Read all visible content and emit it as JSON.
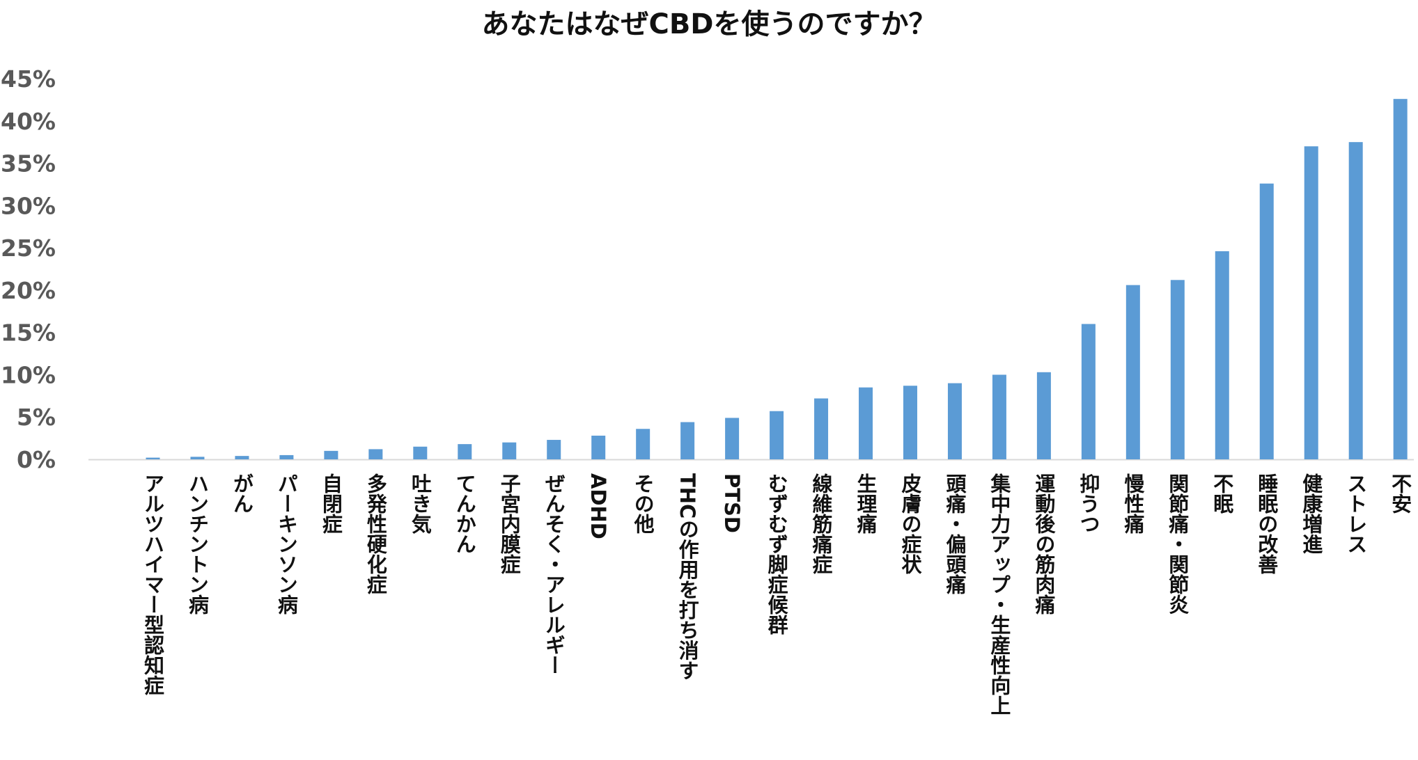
{
  "chart_data": {
    "type": "bar",
    "title": "あなたはなぜCBDを使うのですか？",
    "xlabel": "",
    "ylabel": "",
    "ylim": [
      0,
      45
    ],
    "y_ticks": [
      "0%",
      "5%",
      "10%",
      "15%",
      "20%",
      "25%",
      "30%",
      "35%",
      "40%",
      "45%"
    ],
    "grid": false,
    "categories": [
      "アルツハイマー型認知症",
      "ハンチントン病",
      "がん",
      "パーキンソン病",
      "自閉症",
      "多発性硬化症",
      "吐き気",
      "てんかん",
      "子宮内膜症",
      "ぜんそく・アレルギー",
      "ADHD",
      "その他",
      "THCの作用を打ち消す",
      "PTSD",
      "むずむず脚症候群",
      "線維筋痛症",
      "生理痛",
      "皮膚の症状",
      "頭痛・偏頭痛",
      "集中力アップ・生産性向上",
      "運動後の筋肉痛",
      "抑うつ",
      "慢性痛",
      "関節痛・関節炎",
      "不眠",
      "睡眠の改善",
      "健康増進",
      "ストレス",
      "不安"
    ],
    "values": [
      0.2,
      0.3,
      0.4,
      0.5,
      1.0,
      1.2,
      1.5,
      1.8,
      2.0,
      2.3,
      2.8,
      3.6,
      4.4,
      4.9,
      5.7,
      7.2,
      8.5,
      8.7,
      9.0,
      10.0,
      10.3,
      16.0,
      20.6,
      21.2,
      24.6,
      32.6,
      37.0,
      37.5,
      42.6
    ],
    "colors": {
      "bar": "#5b9bd5",
      "axis": "#d9d9d9",
      "tick_text": "#595959",
      "text": "#111111"
    }
  }
}
